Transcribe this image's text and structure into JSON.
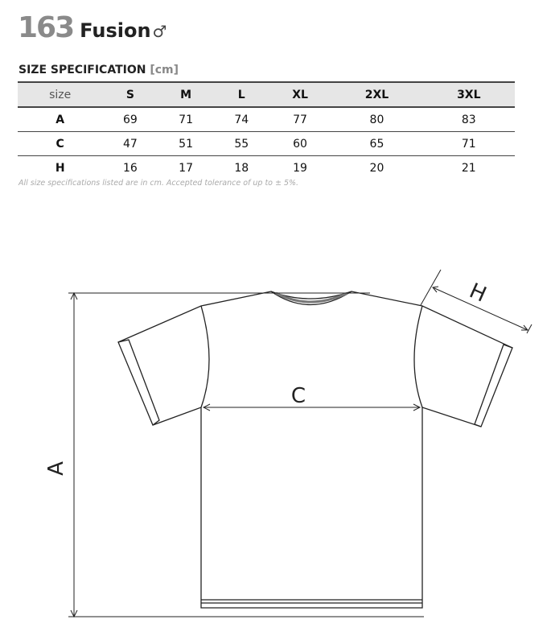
{
  "header": {
    "number": "163",
    "name": "Fusion",
    "gender_symbol": "♂"
  },
  "spec": {
    "title": "SIZE SPECIFICATION",
    "unit": "[cm]"
  },
  "table": {
    "columns": [
      "size",
      "S",
      "M",
      "L",
      "XL",
      "2XL",
      "3XL"
    ],
    "rows": [
      {
        "label": "A",
        "values": [
          "69",
          "71",
          "74",
          "77",
          "80",
          "83"
        ]
      },
      {
        "label": "C",
        "values": [
          "47",
          "51",
          "55",
          "60",
          "65",
          "71"
        ]
      },
      {
        "label": "H",
        "values": [
          "16",
          "17",
          "18",
          "19",
          "20",
          "21"
        ]
      }
    ]
  },
  "note": "All size specifications listed are in cm. Accepted tolerance of up to ± 5%.",
  "diagram": {
    "label_a": "A",
    "label_c": "C",
    "label_h": "H"
  }
}
